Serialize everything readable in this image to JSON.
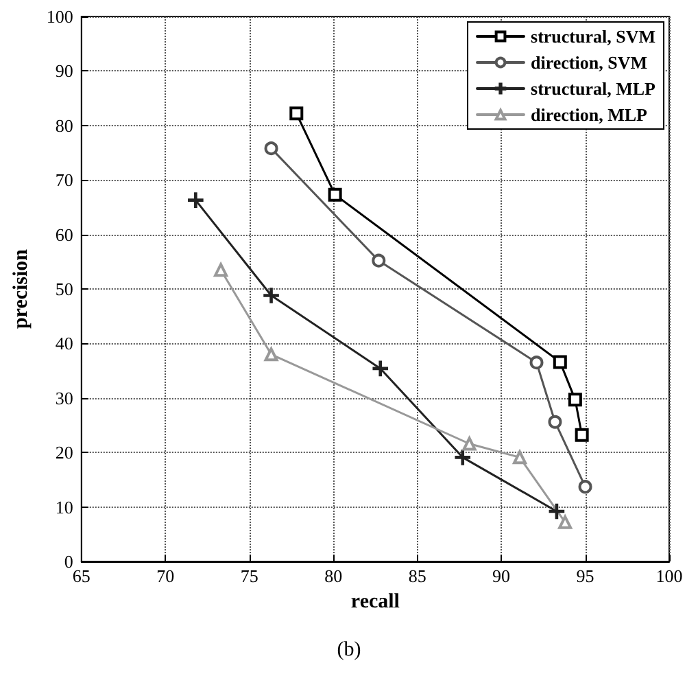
{
  "chart_data": {
    "type": "line",
    "xlabel": "recall",
    "ylabel": "precision",
    "xlim": [
      65,
      100
    ],
    "xticks": [
      65,
      70,
      75,
      80,
      85,
      90,
      95,
      100
    ],
    "ylim": [
      0,
      100
    ],
    "yticks": [
      0,
      10,
      20,
      30,
      40,
      50,
      60,
      70,
      80,
      90,
      100
    ],
    "grid": true,
    "legend": "top right",
    "line_style": "solid",
    "annotations": [
      "(b)"
    ],
    "series": [
      {
        "name": "structural, SVM",
        "color": "#000000",
        "marker": "square",
        "x": [
          77.8,
          80.1,
          93.5,
          94.4,
          94.8
        ],
        "values": [
          82.2,
          67.3,
          36.6,
          29.7,
          23.2
        ]
      },
      {
        "name": "direction, SVM",
        "color": "#555555",
        "marker": "circle",
        "x": [
          76.3,
          82.7,
          92.1,
          93.2,
          95.0
        ],
        "values": [
          75.8,
          55.2,
          36.5,
          25.6,
          13.7
        ]
      },
      {
        "name": "structural, MLP",
        "color": "#222222",
        "marker": "cross",
        "x": [
          71.8,
          76.3,
          82.8,
          87.7,
          93.3
        ],
        "values": [
          66.3,
          48.8,
          35.4,
          19.1,
          9.2
        ]
      },
      {
        "name": "direction, MLP",
        "color": "#999999",
        "marker": "triangle",
        "x": [
          73.3,
          76.3,
          88.1,
          91.1,
          93.8
        ],
        "values": [
          53.5,
          38.0,
          21.6,
          19.1,
          7.2
        ]
      }
    ]
  }
}
